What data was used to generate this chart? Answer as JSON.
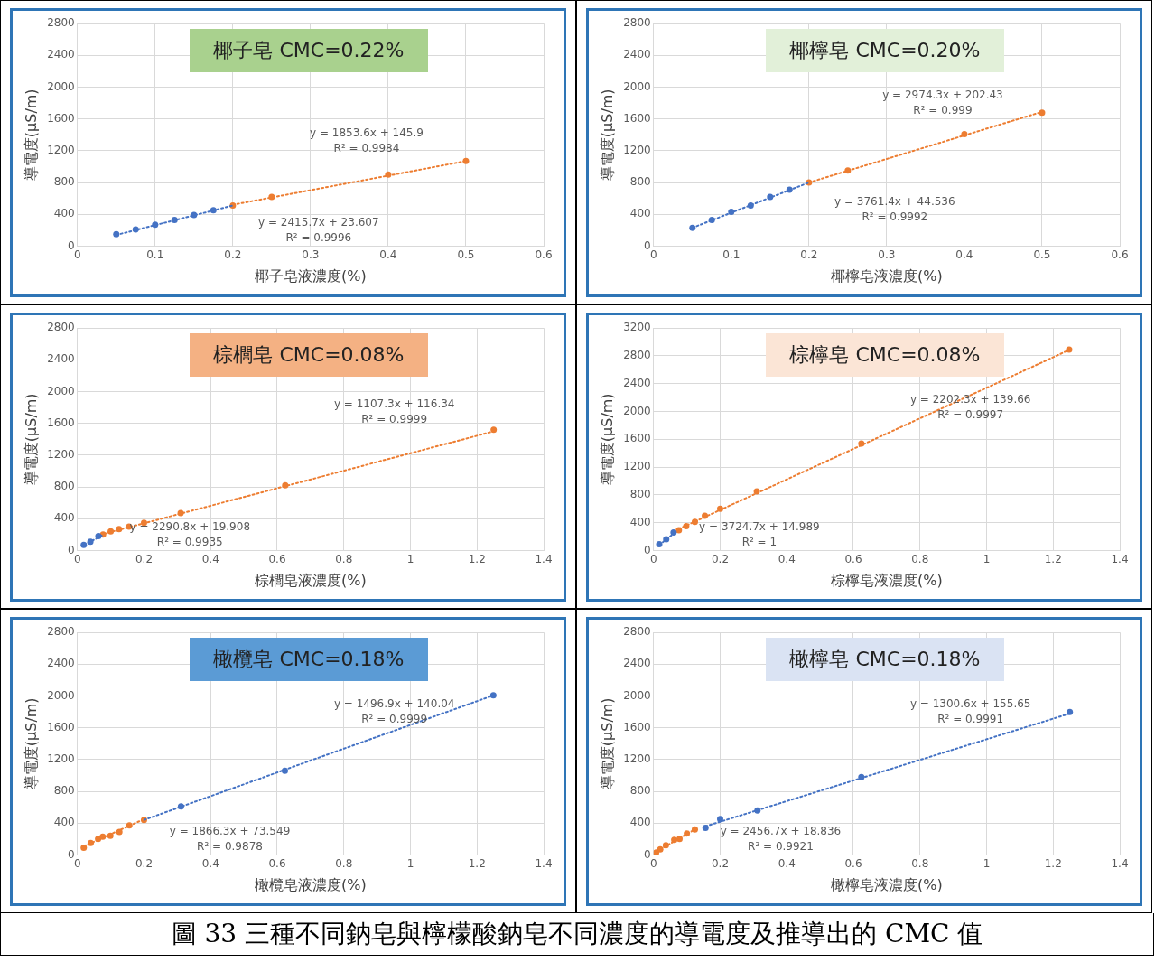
{
  "chart_data": [
    {
      "type": "scatter",
      "title": "椰子皂 CMC=0.22%",
      "xlabel": "椰子皂液濃度(%)",
      "ylabel": "導電度(μS/m)",
      "xlim": [
        0,
        0.6
      ],
      "xticks": [
        0,
        0.1,
        0.2,
        0.3,
        0.4,
        0.5,
        0.6
      ],
      "ylim": [
        0,
        2800
      ],
      "yticks": [
        0,
        400,
        800,
        1200,
        1600,
        2000,
        2400,
        2800
      ],
      "grid": true,
      "legend": false,
      "marker": "circle",
      "series": [
        {
          "type": "line",
          "color": "#4472c4",
          "x": [
            0.05,
            0.2
          ],
          "values": [
            140,
            510
          ],
          "line_style": "dotted",
          "marker": "none"
        },
        {
          "type": "line",
          "color": "#ed7d31",
          "x": [
            0.2,
            0.5
          ],
          "values": [
            520,
            1070
          ],
          "line_style": "dotted",
          "marker": "none"
        },
        {
          "color": "#4472c4",
          "x": [
            0.05,
            0.075,
            0.1,
            0.125,
            0.15,
            0.175
          ],
          "values": [
            150,
            210,
            270,
            330,
            390,
            450
          ]
        },
        {
          "color": "#ed7d31",
          "x": [
            0.2,
            0.25,
            0.4,
            0.5
          ],
          "values": [
            510,
            620,
            900,
            1070
          ]
        }
      ],
      "annotations": [
        "y = 2415.7x + 23.607",
        "R² = 0.9996",
        "y = 1853.6x + 145.9",
        "R² = 0.9984"
      ]
    },
    {
      "type": "scatter",
      "title": "椰檸皂 CMC=0.20%",
      "xlabel": "椰檸皂液濃度(%)",
      "ylabel": "導電度(μS/m)",
      "xlim": [
        0,
        0.6
      ],
      "xticks": [
        0,
        0.1,
        0.2,
        0.3,
        0.4,
        0.5,
        0.6
      ],
      "ylim": [
        0,
        2800
      ],
      "yticks": [
        0,
        400,
        800,
        1200,
        1600,
        2000,
        2400,
        2800
      ],
      "grid": true,
      "legend": false,
      "marker": "circle",
      "series": [
        {
          "type": "line",
          "color": "#4472c4",
          "x": [
            0.05,
            0.2
          ],
          "values": [
            230,
            800
          ],
          "line_style": "dotted",
          "marker": "none"
        },
        {
          "type": "line",
          "color": "#ed7d31",
          "x": [
            0.2,
            0.5
          ],
          "values": [
            800,
            1690
          ],
          "line_style": "dotted",
          "marker": "none"
        },
        {
          "color": "#4472c4",
          "x": [
            0.05,
            0.075,
            0.1,
            0.125,
            0.15,
            0.175
          ],
          "values": [
            230,
            330,
            430,
            510,
            620,
            710
          ]
        },
        {
          "color": "#ed7d31",
          "x": [
            0.2,
            0.25,
            0.4,
            0.5
          ],
          "values": [
            800,
            950,
            1410,
            1680
          ]
        }
      ],
      "annotations": [
        "y = 3761.4x + 44.536",
        "R² = 0.9992",
        "y = 2974.3x + 202.43",
        "R² = 0.999"
      ]
    },
    {
      "type": "scatter",
      "title": "棕櫚皂 CMC=0.08%",
      "xlabel": "棕櫚皂液濃度(%)",
      "ylabel": "導電度(μS/m)",
      "xlim": [
        0,
        1.4
      ],
      "xticks": [
        0,
        0.2,
        0.4,
        0.6,
        0.8,
        1,
        1.2,
        1.4
      ],
      "ylim": [
        0,
        2800
      ],
      "yticks": [
        0,
        400,
        800,
        1200,
        1600,
        2000,
        2400,
        2800
      ],
      "grid": true,
      "legend": false,
      "marker": "circle",
      "series": [
        {
          "type": "line",
          "color": "#4472c4",
          "x": [
            0.02,
            0.08
          ],
          "values": [
            70,
            200
          ],
          "line_style": "dotted",
          "marker": "none"
        },
        {
          "type": "line",
          "color": "#ed7d31",
          "x": [
            0.08,
            1.25
          ],
          "values": [
            210,
            1500
          ],
          "line_style": "dotted",
          "marker": "none"
        },
        {
          "color": "#4472c4",
          "x": [
            0.019,
            0.039,
            0.063
          ],
          "values": [
            70,
            110,
            180
          ]
        },
        {
          "color": "#ed7d31",
          "x": [
            0.077,
            0.1,
            0.125,
            0.155,
            0.2,
            0.31,
            0.624,
            1.25
          ],
          "values": [
            200,
            240,
            270,
            300,
            350,
            470,
            820,
            1520
          ]
        }
      ],
      "annotations": [
        "y = 2290.8x + 19.908",
        "R² = 0.9935",
        "y = 1107.3x + 116.34",
        "R² = 0.9999"
      ]
    },
    {
      "type": "scatter",
      "title": "棕檸皂 CMC=0.08%",
      "xlabel": "棕檸皂液濃度(%)",
      "ylabel": "導電度(μS/m)",
      "xlim": [
        0,
        1.4
      ],
      "xticks": [
        0,
        0.2,
        0.4,
        0.6,
        0.8,
        1,
        1.2,
        1.4
      ],
      "ylim": [
        0,
        3200
      ],
      "yticks": [
        0,
        400,
        800,
        1200,
        1600,
        2000,
        2400,
        2800,
        3200
      ],
      "grid": true,
      "legend": false,
      "marker": "circle",
      "series": [
        {
          "type": "line",
          "color": "#4472c4",
          "x": [
            0.017,
            0.06
          ],
          "values": [
            80,
            240
          ],
          "line_style": "dotted",
          "marker": "none"
        },
        {
          "type": "line",
          "color": "#ed7d31",
          "x": [
            0.076,
            1.25
          ],
          "values": [
            310,
            2890
          ],
          "line_style": "dotted",
          "marker": "none"
        },
        {
          "color": "#4472c4",
          "x": [
            0.017,
            0.038,
            0.06
          ],
          "values": [
            90,
            160,
            260
          ]
        },
        {
          "color": "#ed7d31",
          "x": [
            0.076,
            0.098,
            0.124,
            0.154,
            0.2,
            0.31,
            0.624,
            1.248
          ],
          "values": [
            290,
            350,
            410,
            500,
            600,
            850,
            1540,
            2890
          ]
        }
      ],
      "annotations": [
        "y = 3724.7x + 14.989",
        "R² = 1",
        "y = 2202.3x + 139.66",
        "R² = 0.9997"
      ]
    },
    {
      "type": "scatter",
      "title": "橄欖皂 CMC=0.18%",
      "xlabel": "橄欖皂液濃度(%)",
      "ylabel": "導電度(μS/m)",
      "xlim": [
        0,
        1.4
      ],
      "xticks": [
        0,
        0.2,
        0.4,
        0.6,
        0.8,
        1,
        1.2,
        1.4
      ],
      "ylim": [
        0,
        2800
      ],
      "yticks": [
        0,
        400,
        800,
        1200,
        1600,
        2000,
        2400,
        2800
      ],
      "grid": true,
      "legend": false,
      "marker": "circle",
      "series": [
        {
          "type": "line",
          "color": "#ed7d31",
          "x": [
            0.02,
            0.2
          ],
          "values": [
            110,
            450
          ],
          "line_style": "dotted",
          "marker": "none"
        },
        {
          "type": "line",
          "color": "#4472c4",
          "x": [
            0.2,
            1.25
          ],
          "values": [
            440,
            2010
          ],
          "line_style": "dotted",
          "marker": "none"
        },
        {
          "color": "#ed7d31",
          "x": [
            0.019,
            0.04,
            0.062,
            0.076,
            0.099,
            0.126,
            0.156,
            0.2
          ],
          "values": [
            90,
            150,
            200,
            230,
            240,
            290,
            370,
            440
          ]
        },
        {
          "color": "#4472c4",
          "x": [
            0.311,
            0.623,
            1.249
          ],
          "values": [
            610,
            1060,
            2010
          ]
        }
      ],
      "annotations": [
        "y = 1866.3x + 73.549",
        "R² = 0.9878",
        "y = 1496.9x + 140.04",
        "R² = 0.9999"
      ]
    },
    {
      "type": "scatter",
      "title": "橄檸皂 CMC=0.18%",
      "xlabel": "橄檸皂液濃度(%)",
      "ylabel": "導電度(μS/m)",
      "xlim": [
        0,
        1.4
      ],
      "xticks": [
        0,
        0.2,
        0.4,
        0.6,
        0.8,
        1,
        1.2,
        1.4
      ],
      "ylim": [
        0,
        2800
      ],
      "yticks": [
        0,
        400,
        800,
        1200,
        1600,
        2000,
        2400,
        2800
      ],
      "grid": true,
      "legend": false,
      "marker": "circle",
      "series": [
        {
          "type": "line",
          "color": "#ed7d31",
          "x": [
            0.008,
            0.124
          ],
          "values": [
            40,
            320
          ],
          "line_style": "dotted",
          "marker": "none"
        },
        {
          "type": "line",
          "color": "#4472c4",
          "x": [
            0.156,
            1.25
          ],
          "values": [
            360,
            1780
          ],
          "line_style": "dotted",
          "marker": "none"
        },
        {
          "color": "#ed7d31",
          "x": [
            0.008,
            0.02,
            0.037,
            0.062,
            0.078,
            0.1,
            0.124
          ],
          "values": [
            30,
            70,
            120,
            190,
            200,
            270,
            320
          ]
        },
        {
          "color": "#4472c4",
          "x": [
            0.156,
            0.2,
            0.312,
            0.624,
            1.25
          ],
          "values": [
            340,
            450,
            560,
            980,
            1800
          ]
        }
      ],
      "annotations": [
        "y = 2456.7x + 18.836",
        "R² = 0.9921",
        "y = 1300.6x + 155.65",
        "R² = 0.9991",
        "圖 33  三種不同鈉皂與檸檬酸鈉皂不同濃度的導電度及推導出的 CMC 值"
      ]
    }
  ]
}
